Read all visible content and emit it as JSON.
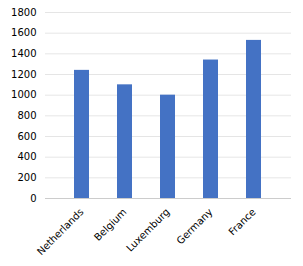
{
  "chart_data": {
    "type": "bar",
    "categories": [
      "Netherlands",
      "Belgium",
      "Luxemburg",
      "Germany",
      "France"
    ],
    "values": [
      1240,
      1100,
      1000,
      1340,
      1530
    ],
    "color": "#4472C4",
    "ylim": [
      0,
      1800
    ],
    "yticks": [
      0,
      200,
      400,
      600,
      800,
      1000,
      1200,
      1400,
      1600,
      1800
    ],
    "grid": true
  }
}
